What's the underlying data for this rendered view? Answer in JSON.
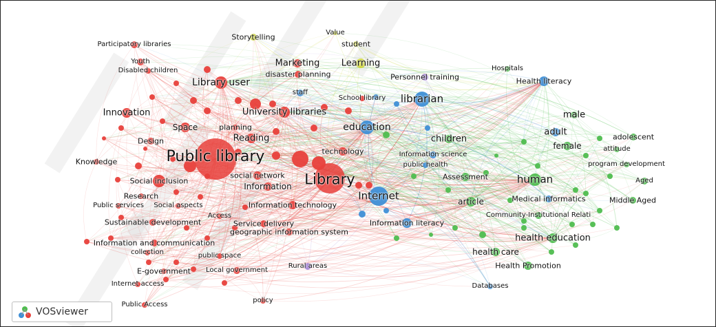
{
  "watermark": {
    "logo_label": "VOSviewer"
  },
  "colors": {
    "red": "#e8403b",
    "green": "#4fbd4f",
    "blue": "#3f8fd6",
    "yellow": "#cfd63c",
    "purple": "#a98ad8"
  },
  "nodes": [
    {
      "label": "Storytelling"
    },
    {
      "label": "Value"
    },
    {
      "label": "Participatory libraries"
    },
    {
      "label": "student"
    },
    {
      "label": "Youth"
    },
    {
      "label": "Marketing"
    },
    {
      "label": "Learning"
    },
    {
      "label": "Hospitals"
    },
    {
      "label": "Disabled children"
    },
    {
      "label": "disaster planning"
    },
    {
      "label": "Personnel training"
    },
    {
      "label": "Library user"
    },
    {
      "label": "Health literacy"
    },
    {
      "label": "staff"
    },
    {
      "label": "School library"
    },
    {
      "label": "librarian"
    },
    {
      "label": "Innovation"
    },
    {
      "label": "University libraries"
    },
    {
      "label": "male"
    },
    {
      "label": "Space"
    },
    {
      "label": "planning"
    },
    {
      "label": "education"
    },
    {
      "label": "children"
    },
    {
      "label": "adult"
    },
    {
      "label": "adolescent"
    },
    {
      "label": "Design"
    },
    {
      "label": "Reading"
    },
    {
      "label": "female"
    },
    {
      "label": "attitude"
    },
    {
      "label": "technology"
    },
    {
      "label": "Public library"
    },
    {
      "label": "Information science"
    },
    {
      "label": "Knowledge"
    },
    {
      "label": "public health"
    },
    {
      "label": "program development"
    },
    {
      "label": "social network"
    },
    {
      "label": "Library"
    },
    {
      "label": "Assessment"
    },
    {
      "label": "human"
    },
    {
      "label": "Aged"
    },
    {
      "label": "Social inclusion"
    },
    {
      "label": "Information"
    },
    {
      "label": "Research"
    },
    {
      "label": "Internet"
    },
    {
      "label": "Medical informatics"
    },
    {
      "label": "Middle Aged"
    },
    {
      "label": "article"
    },
    {
      "label": "Public services"
    },
    {
      "label": "Social aspects"
    },
    {
      "label": "Information technology"
    },
    {
      "label": "Access"
    },
    {
      "label": "Community-Institutional Relati"
    },
    {
      "label": "Sustainable development"
    },
    {
      "label": "Service delivery"
    },
    {
      "label": "Information literacy"
    },
    {
      "label": "geographic information system"
    },
    {
      "label": "health education"
    },
    {
      "label": "Information and communication"
    },
    {
      "label": "collection"
    },
    {
      "label": "public space"
    },
    {
      "label": "health care"
    },
    {
      "label": "Health Promotion"
    },
    {
      "label": "E-government"
    },
    {
      "label": "Local government"
    },
    {
      "label": "Rural areas"
    },
    {
      "label": "Internet access"
    },
    {
      "label": "Databases"
    },
    {
      "label": "policy"
    },
    {
      "label": "Public Access"
    }
  ]
}
